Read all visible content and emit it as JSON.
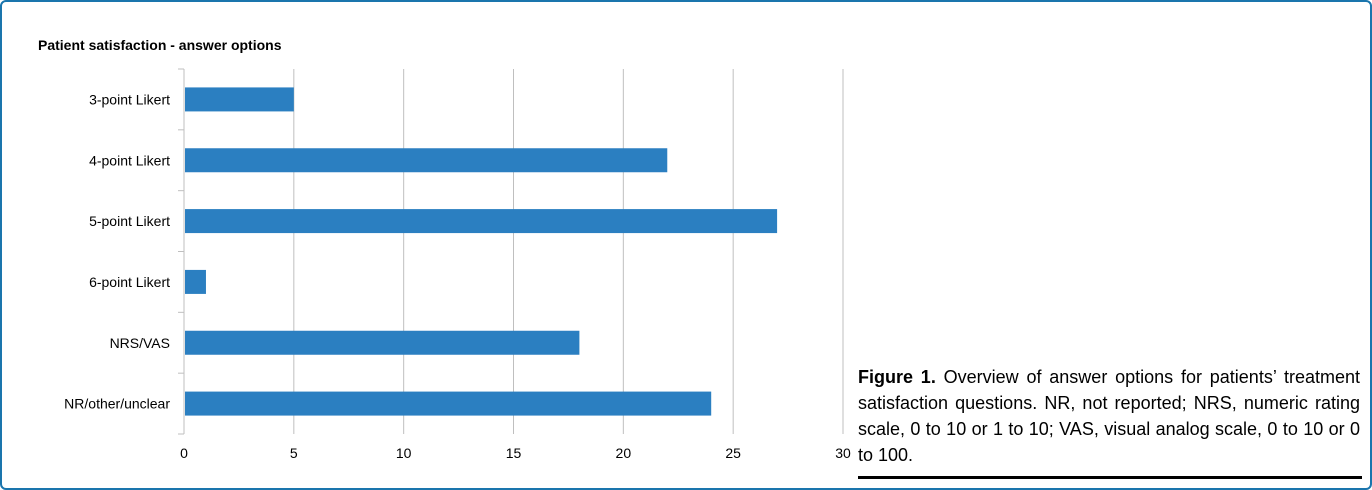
{
  "chart_data": {
    "type": "bar",
    "orientation": "horizontal",
    "title": "Patient satisfaction - answer options",
    "categories": [
      "3-point Likert",
      "4-point Likert",
      "5-point Likert",
      "6-point Likert",
      "NRS/VAS",
      "NR/other/unclear"
    ],
    "values": [
      5,
      22,
      27,
      1,
      18,
      24
    ],
    "xlim": [
      0,
      30
    ],
    "xticks": [
      "0",
      "5",
      "10",
      "15",
      "20",
      "25",
      "30"
    ],
    "grid": "vertical",
    "bar_color": "#2b7fc1"
  },
  "caption": {
    "label": "Figure 1.",
    "text": "Overview of answer options for patients’ treatment satisfaction questions. NR, not reported; NRS, numeric rating scale, 0 to 10 or 1 to 10; VAS, visual analog scale, 0 to 10 or 0 to 100."
  },
  "colors": {
    "frame": "#1a75ad",
    "bar": "#2b7fc1",
    "grid": "#bfbfbf"
  }
}
